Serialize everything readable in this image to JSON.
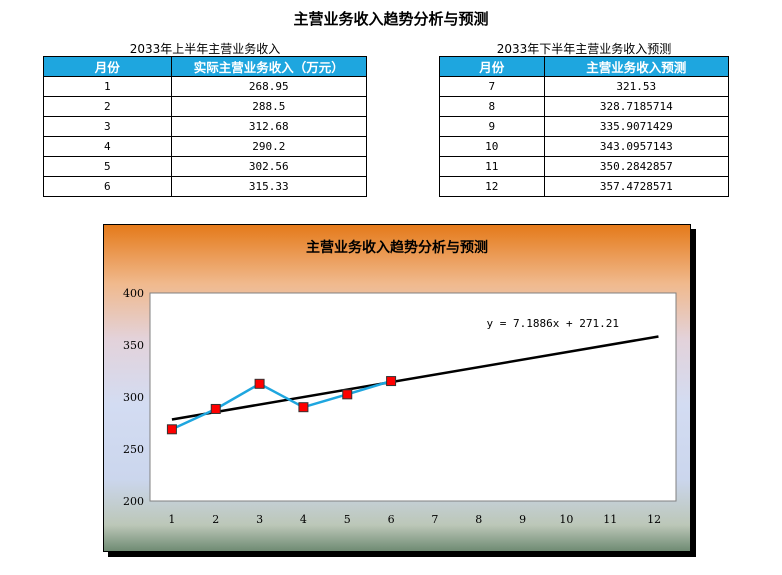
{
  "page": {
    "title": "主营业务收入趋势分析与预测"
  },
  "table_actual": {
    "caption": "2033年上半年主营业务收入",
    "headers": [
      "月份",
      "实际主营业务收入（万元）"
    ],
    "rows": [
      [
        "1",
        "268.95"
      ],
      [
        "2",
        "288.5"
      ],
      [
        "3",
        "312.68"
      ],
      [
        "4",
        "290.2"
      ],
      [
        "5",
        "302.56"
      ],
      [
        "6",
        "315.33"
      ]
    ]
  },
  "table_forecast": {
    "caption": "2033年下半年主营业务收入预测",
    "headers": [
      "月份",
      "主营业务收入预测"
    ],
    "rows": [
      [
        "7",
        "321.53"
      ],
      [
        "8",
        "328.7185714"
      ],
      [
        "9",
        "335.9071429"
      ],
      [
        "10",
        "343.0957143"
      ],
      [
        "11",
        "350.2842857"
      ],
      [
        "12",
        "357.4728571"
      ]
    ]
  },
  "chart_data": {
    "type": "line",
    "title": "主营业务收入趋势分析与预测",
    "x_ticks": [
      1,
      2,
      3,
      4,
      5,
      6,
      7,
      8,
      9,
      10,
      11,
      12
    ],
    "y_ticks": [
      200,
      250,
      300,
      350,
      400
    ],
    "ylim": [
      200,
      400
    ],
    "xlim": [
      0.5,
      12.5
    ],
    "series": [
      {
        "x": [
          1,
          2,
          3,
          4,
          5,
          6
        ],
        "values": [
          268.95,
          288.5,
          312.68,
          290.2,
          302.56,
          315.33
        ],
        "color": "#1ea6df",
        "marker_color": "#ff0000"
      }
    ],
    "trendline": {
      "slope": 7.1886,
      "intercept": 271.21,
      "x_range": [
        1,
        12.1
      ],
      "color": "#000000",
      "equation": "y = 7.1886x + 271.21"
    },
    "grid": false,
    "legend": "none"
  },
  "colors": {
    "header_bg": "#1ea6df",
    "header_text": "#ffffff",
    "chart_line": "#1ea6df",
    "marker": "#ff0000"
  }
}
